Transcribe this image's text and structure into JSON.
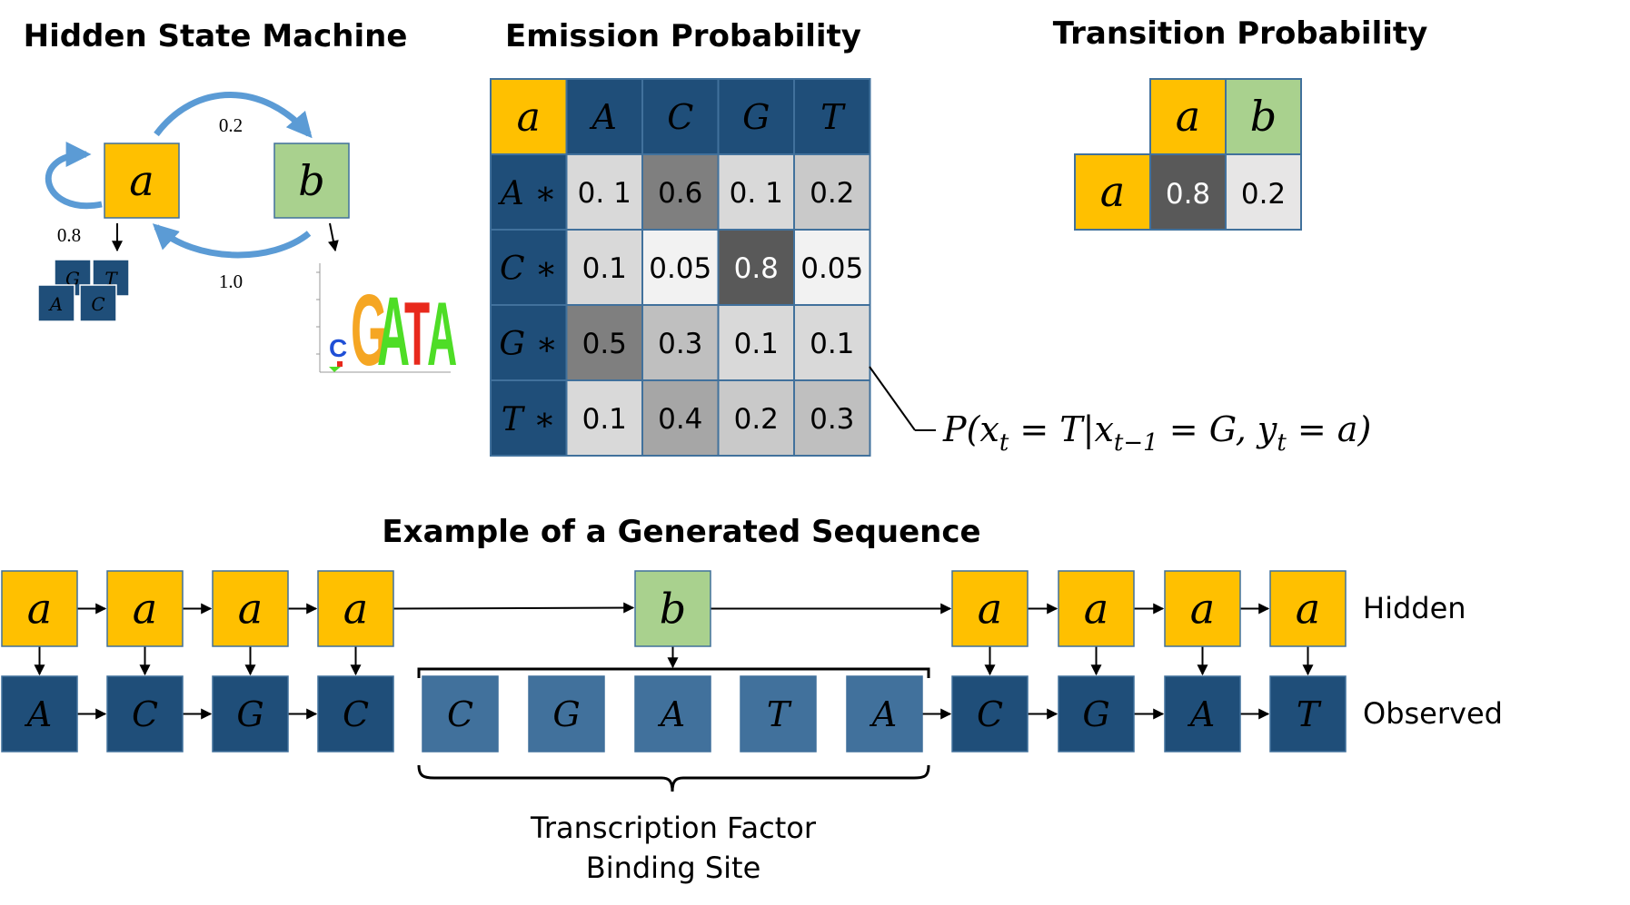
{
  "titles": {
    "hsm": "Hidden State Machine",
    "emission": "Emission Probability",
    "transition": "Transition Probability",
    "example": "Example of a Generated Sequence"
  },
  "colors": {
    "state_a": "#FFC000",
    "state_b": "#A9D18E",
    "dark_blue": "#1F4E79",
    "tf_blue": "#41719C",
    "arc_blue": "#5B9BD5"
  },
  "hsm": {
    "state_a": "a",
    "state_b": "b",
    "p_ab": "0.2",
    "p_aa": "0.8",
    "p_ba": "1.0",
    "mini_bases": [
      "G",
      "T",
      "A",
      "C"
    ],
    "motif_letters": [
      "C",
      "G",
      "A",
      "T",
      "A"
    ]
  },
  "emission": {
    "corner": "a",
    "columns": [
      "A",
      "C",
      "G",
      "T"
    ],
    "rows": [
      {
        "label": "A ∗",
        "values": [
          "0. 1",
          "0.6",
          "0. 1",
          "0.2"
        ]
      },
      {
        "label": "C ∗",
        "values": [
          "0.1",
          "0.05",
          "0.8",
          "0.05"
        ]
      },
      {
        "label": "G ∗",
        "values": [
          "0.5",
          "0.3",
          "0.1",
          "0.1"
        ]
      },
      {
        "label": "T ∗",
        "values": [
          "0.1",
          "0.4",
          "0.2",
          "0.3"
        ]
      }
    ],
    "formula": "P(x_t = T | x_{t−1} = G, y_t = a)"
  },
  "transition": {
    "columns": [
      "a",
      "b"
    ],
    "row_label": "a",
    "values": [
      "0.8",
      "0.2"
    ]
  },
  "sequence": {
    "hidden_label": "Hidden",
    "observed_label": "Observed",
    "hidden_left": [
      "a",
      "a",
      "a",
      "a"
    ],
    "observed_left": [
      "A",
      "C",
      "G",
      "C"
    ],
    "hidden_middle": "b",
    "binding_site": [
      "C",
      "G",
      "A",
      "T",
      "A"
    ],
    "hidden_right": [
      "a",
      "a",
      "a",
      "a"
    ],
    "observed_right": [
      "C",
      "G",
      "A",
      "T"
    ],
    "tfbs_label_line1": "Transcription Factor",
    "tfbs_label_line2": "Binding Site"
  }
}
